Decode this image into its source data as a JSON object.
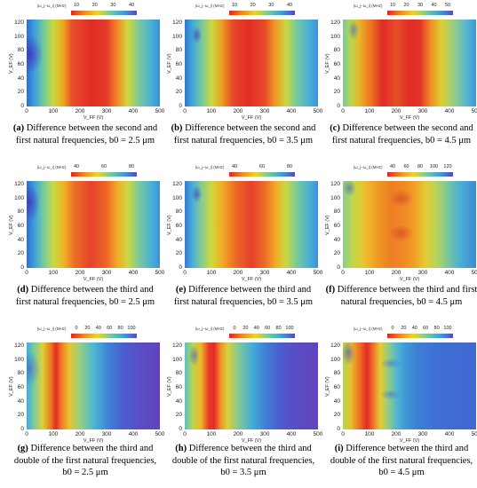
{
  "axis": {
    "xlabel": "V_FF (V)",
    "ylabel": "V_EF (V)",
    "cbar_label": "|ω_j−ω_i| (MHz)",
    "xticks": [
      "0",
      "100",
      "200",
      "300",
      "400",
      "500"
    ],
    "yticks": [
      "0",
      "20",
      "40",
      "60",
      "80",
      "100",
      "120"
    ]
  },
  "panels": [
    {
      "id": "a",
      "letter": "(a)",
      "caption_lines": [
        "Difference between the second and",
        "first natural frequencies, b0 = 2.5 μm"
      ],
      "b0": "2.5 μm",
      "cbar_ticks": [
        "10",
        "20",
        "30",
        "40"
      ]
    },
    {
      "id": "b",
      "letter": "(b)",
      "caption_lines": [
        "Difference between the second and",
        "first natural frequencies, b0 = 3.5 μm"
      ],
      "b0": "3.5 μm",
      "cbar_ticks": [
        "10",
        "20",
        "30",
        "40"
      ]
    },
    {
      "id": "c",
      "letter": "(c)",
      "caption_lines": [
        "Difference between the second and",
        "first natural frequencies, b0 = 4.5 μm"
      ],
      "b0": "4.5 μm",
      "cbar_ticks": [
        "10",
        "20",
        "30",
        "40",
        "50"
      ]
    },
    {
      "id": "d",
      "letter": "(d)",
      "caption_lines": [
        "Difference between the third and",
        "first natural frequencies, b0 = 2.5 μm"
      ],
      "b0": "2.5 μm",
      "cbar_ticks": [
        "40",
        "60",
        "80"
      ]
    },
    {
      "id": "e",
      "letter": "(e)",
      "caption_lines": [
        "Difference between the third and",
        "first natural frequencies, b0 = 3.5 μm"
      ],
      "b0": "3.5 μm",
      "cbar_ticks": [
        "40",
        "60",
        "80"
      ]
    },
    {
      "id": "f",
      "letter": "(f)",
      "caption_lines": [
        "Difference between the third and first",
        "natural frequencies, b0 = 4.5 μm"
      ],
      "b0": "4.5 μm",
      "cbar_ticks": [
        "40",
        "60",
        "80",
        "100",
        "120"
      ]
    },
    {
      "id": "g",
      "letter": "(g)",
      "caption_lines": [
        "Difference between the third and",
        "double of the first natural frequencies,",
        "b0 = 2.5 μm"
      ],
      "b0": "2.5 μm",
      "cbar_ticks": [
        "0",
        "20",
        "40",
        "60",
        "80",
        "100"
      ]
    },
    {
      "id": "h",
      "letter": "(h)",
      "caption_lines": [
        "Difference between the third and",
        "double of the first natural frequencies,",
        "b0 = 3.5 μm"
      ],
      "b0": "3.5 μm",
      "cbar_ticks": [
        "0",
        "20",
        "40",
        "60",
        "80",
        "100"
      ]
    },
    {
      "id": "i",
      "letter": "(i)",
      "caption_lines": [
        "Difference between the third and",
        "double of the first natural frequencies,",
        "b0 = 4.5 μm"
      ],
      "b0": "4.5 μm",
      "cbar_ticks": [
        "0",
        "20",
        "40",
        "60",
        "80",
        "100"
      ]
    }
  ]
}
